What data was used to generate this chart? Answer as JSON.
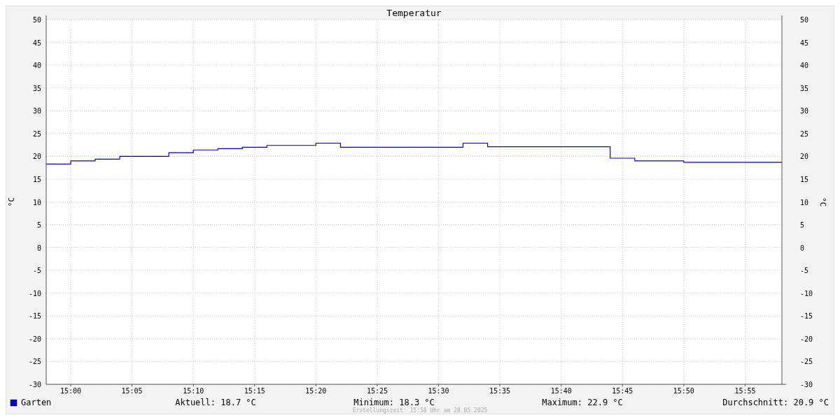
{
  "chart_data": {
    "type": "step",
    "title": "Temperatur",
    "ylabel": "°C",
    "y2label": "°C",
    "x": [
      14.9667,
      15,
      15.0333,
      15.0667,
      15.1333,
      15.1667,
      15.2,
      15.2333,
      15.2667,
      15.3333,
      15.3667,
      15.5333,
      15.5667,
      15.7333,
      15.7667,
      15.8333,
      15.9667
    ],
    "series": [
      {
        "name": "Garten",
        "color": "#0000cc",
        "values": [
          18.3,
          19.0,
          19.4,
          20.0,
          20.8,
          21.4,
          21.7,
          22.0,
          22.4,
          22.9,
          22.0,
          22.9,
          22.1,
          19.6,
          19.0,
          18.7,
          18.7
        ]
      }
    ],
    "xlim": [
      14.9667,
      15.9667
    ],
    "xticks": [
      {
        "value": 15,
        "label": "15:00"
      },
      {
        "value": 15.0833,
        "label": "15:05"
      },
      {
        "value": 15.1667,
        "label": "15:10"
      },
      {
        "value": 15.25,
        "label": "15:15"
      },
      {
        "value": 15.3333,
        "label": "15:20"
      },
      {
        "value": 15.4167,
        "label": "15:25"
      },
      {
        "value": 15.5,
        "label": "15:30"
      },
      {
        "value": 15.5833,
        "label": "15:35"
      },
      {
        "value": 15.6667,
        "label": "15:40"
      },
      {
        "value": 15.75,
        "label": "15:45"
      },
      {
        "value": 15.8333,
        "label": "15:50"
      },
      {
        "value": 15.9167,
        "label": "15:55"
      }
    ],
    "ylim": [
      -30,
      50
    ],
    "yticks": [
      -30,
      -25,
      -20,
      -15,
      -10,
      -5,
      0,
      5,
      10,
      15,
      20,
      25,
      30,
      35,
      40,
      45,
      50
    ],
    "y2lim": [
      -30,
      50
    ],
    "y2ticks": [
      -30,
      -25,
      -20,
      -15,
      -10,
      -5,
      0,
      5,
      10,
      15,
      20,
      25,
      30,
      35,
      40,
      45,
      50
    ],
    "grid": true,
    "legend": "bottom left",
    "annotations": [
      "Aktuell: 18.7 °C",
      "Minimum: 18.3 °C",
      "Maximum: 22.9 °C",
      "Durchschnitt: 20.9 °C",
      "Erstellungszeit: 15:58 Uhr am 28.05.2025"
    ]
  }
}
